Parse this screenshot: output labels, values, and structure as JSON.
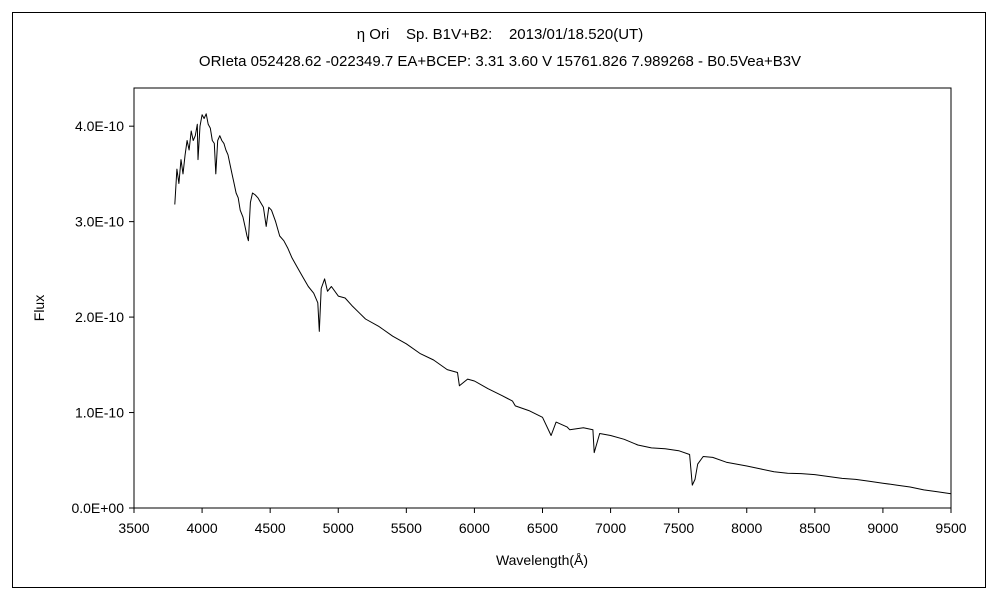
{
  "chart_data": {
    "type": "line",
    "title": "η Ori    Sp. B1V+B2:    2013/01/18.520(UT)",
    "subtitle": "ORIeta 052428.62 -022349.7 EA+BCEP: 3.31 3.60 V 15761.826 7.989268 - B0.5Vea+B3V",
    "xlabel": "Wavelength(Å)",
    "ylabel": "Flux",
    "xlim": [
      3500,
      9500
    ],
    "ylim": [
      0,
      4.4e-10
    ],
    "grid": false,
    "legend": "none",
    "x_ticks": [
      3500,
      4000,
      4500,
      5000,
      5500,
      6000,
      6500,
      7000,
      7500,
      8000,
      8500,
      9000,
      9500
    ],
    "x_tick_labels": [
      "3500",
      "4000",
      "4500",
      "5000",
      "5500",
      "6000",
      "6500",
      "7000",
      "7500",
      "8000",
      "8500",
      "9000",
      "9500"
    ],
    "y_ticks": [
      0,
      1e-10,
      2e-10,
      3e-10,
      4e-10
    ],
    "y_tick_labels": [
      "0.0E+00",
      "1.0E-10",
      "2.0E-10",
      "3.0E-10",
      "4.0E-10"
    ],
    "series": [
      {
        "color": "#000000",
        "x": [
          3800,
          3815,
          3830,
          3845,
          3860,
          3875,
          3890,
          3905,
          3920,
          3935,
          3950,
          3965,
          3970,
          3985,
          4000,
          4015,
          4030,
          4045,
          4060,
          4075,
          4090,
          4101,
          4115,
          4130,
          4145,
          4160,
          4175,
          4190,
          4205,
          4220,
          4235,
          4250,
          4265,
          4280,
          4300,
          4315,
          4330,
          4340,
          4355,
          4370,
          4390,
          4410,
          4430,
          4450,
          4471,
          4490,
          4510,
          4540,
          4570,
          4600,
          4630,
          4660,
          4700,
          4740,
          4780,
          4820,
          4850,
          4861,
          4875,
          4900,
          4921,
          4950,
          5000,
          5050,
          5100,
          5150,
          5200,
          5300,
          5400,
          5500,
          5600,
          5700,
          5800,
          5876,
          5890,
          5950,
          6000,
          6100,
          6200,
          6280,
          6300,
          6400,
          6500,
          6563,
          6600,
          6680,
          6700,
          6800,
          6870,
          6880,
          6920,
          7000,
          7100,
          7200,
          7300,
          7400,
          7500,
          7580,
          7600,
          7620,
          7640,
          7680,
          7750,
          7850,
          8000,
          8100,
          8200,
          8300,
          8400,
          8500,
          8600,
          8700,
          8800,
          8900,
          9000,
          9100,
          9200,
          9300,
          9400,
          9500
        ],
        "y": [
          3.18e-10,
          3.55e-10,
          3.4e-10,
          3.65e-10,
          3.5e-10,
          3.7e-10,
          3.85e-10,
          3.75e-10,
          3.95e-10,
          3.85e-10,
          3.9e-10,
          4.02e-10,
          3.65e-10,
          4e-10,
          4.12e-10,
          4.08e-10,
          4.13e-10,
          4.02e-10,
          3.98e-10,
          3.85e-10,
          3.82e-10,
          3.5e-10,
          3.85e-10,
          3.9e-10,
          3.85e-10,
          3.82e-10,
          3.75e-10,
          3.7e-10,
          3.6e-10,
          3.5e-10,
          3.4e-10,
          3.3e-10,
          3.25e-10,
          3.12e-10,
          3.05e-10,
          2.95e-10,
          2.85e-10,
          2.8e-10,
          3.2e-10,
          3.3e-10,
          3.28e-10,
          3.25e-10,
          3.2e-10,
          3.15e-10,
          2.95e-10,
          3.15e-10,
          3.12e-10,
          3e-10,
          2.85e-10,
          2.8e-10,
          2.72e-10,
          2.62e-10,
          2.52e-10,
          2.42e-10,
          2.32e-10,
          2.25e-10,
          2.15e-10,
          1.85e-10,
          2.3e-10,
          2.4e-10,
          2.27e-10,
          2.32e-10,
          2.22e-10,
          2.2e-10,
          2.12e-10,
          2.05e-10,
          1.98e-10,
          1.9e-10,
          1.8e-10,
          1.72e-10,
          1.62e-10,
          1.55e-10,
          1.45e-10,
          1.42e-10,
          1.28e-10,
          1.35e-10,
          1.33e-10,
          1.25e-10,
          1.18e-10,
          1.12e-10,
          1.07e-10,
          1.02e-10,
          9.5e-11,
          7.6e-11,
          9e-11,
          8.5e-11,
          8.2e-11,
          8.4e-11,
          8.2e-11,
          5.8e-11,
          7.8e-11,
          7.6e-11,
          7.2e-11,
          6.6e-11,
          6.3e-11,
          6.2e-11,
          6e-11,
          5.6e-11,
          2.4e-11,
          3e-11,
          4.6e-11,
          5.4e-11,
          5.3e-11,
          4.8e-11,
          4.4e-11,
          4.1e-11,
          3.8e-11,
          3.65e-11,
          3.6e-11,
          3.5e-11,
          3.3e-11,
          3.1e-11,
          3e-11,
          2.8e-11,
          2.6e-11,
          2.4e-11,
          2.2e-11,
          1.9e-11,
          1.7e-11,
          1.5e-11
        ]
      }
    ]
  }
}
